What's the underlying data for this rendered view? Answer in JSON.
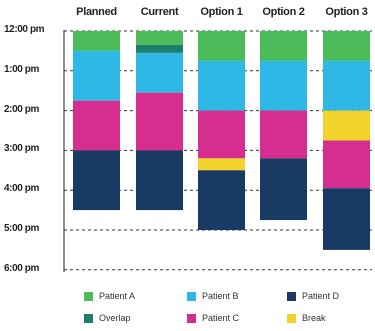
{
  "chart_data": {
    "type": "bar",
    "stacked": true,
    "orientation": "vertical-timeline",
    "categories": [
      "Planned",
      "Current",
      "Option 1",
      "Option 2",
      "Option 3"
    ],
    "time_ticks": [
      "12:00 pm",
      "1:00 pm",
      "2:00 pm",
      "3:00 pm",
      "4:00 pm",
      "5:00 pm",
      "6:00 pm"
    ],
    "ylim_hours": [
      12,
      18
    ],
    "grid": "dashed horizontal lines at each hour",
    "series": [
      {
        "name": "Patient A",
        "color": "#4cbb5a",
        "segments": [
          [
            12.0,
            12.5
          ],
          [
            12.0,
            12.35
          ],
          [
            12.0,
            12.75
          ],
          [
            12.0,
            12.75
          ],
          [
            12.0,
            12.75
          ]
        ]
      },
      {
        "name": "Overlap",
        "color": "#1b7f6b",
        "segments": [
          null,
          [
            12.35,
            12.55
          ],
          null,
          null,
          null
        ]
      },
      {
        "name": "Patient B",
        "color": "#2db8e6",
        "segments": [
          [
            12.5,
            13.75
          ],
          [
            12.55,
            13.55
          ],
          [
            12.75,
            14.0
          ],
          [
            12.75,
            14.0
          ],
          [
            12.75,
            14.0
          ]
        ]
      },
      {
        "name": "Patient C",
        "color": "#d62e8f",
        "segments": [
          [
            13.75,
            15.0
          ],
          [
            13.55,
            15.0
          ],
          [
            14.0,
            15.2
          ],
          [
            14.0,
            15.2
          ],
          [
            14.75,
            15.95
          ]
        ]
      },
      {
        "name": "Break",
        "color": "#f2d32c",
        "segments": [
          null,
          null,
          [
            15.2,
            15.5
          ],
          null,
          [
            14.0,
            14.75
          ]
        ]
      },
      {
        "name": "Patient D",
        "color": "#1a3a66",
        "segments": [
          [
            15.0,
            16.5
          ],
          [
            15.0,
            16.5
          ],
          [
            15.5,
            17.0
          ],
          [
            15.2,
            16.75
          ],
          [
            15.95,
            17.5
          ]
        ]
      }
    ],
    "legend": {
      "placement": "bottom",
      "items": [
        "Patient A",
        "Patient B",
        "Patient D",
        "Overlap",
        "Patient C",
        "Break"
      ]
    }
  }
}
